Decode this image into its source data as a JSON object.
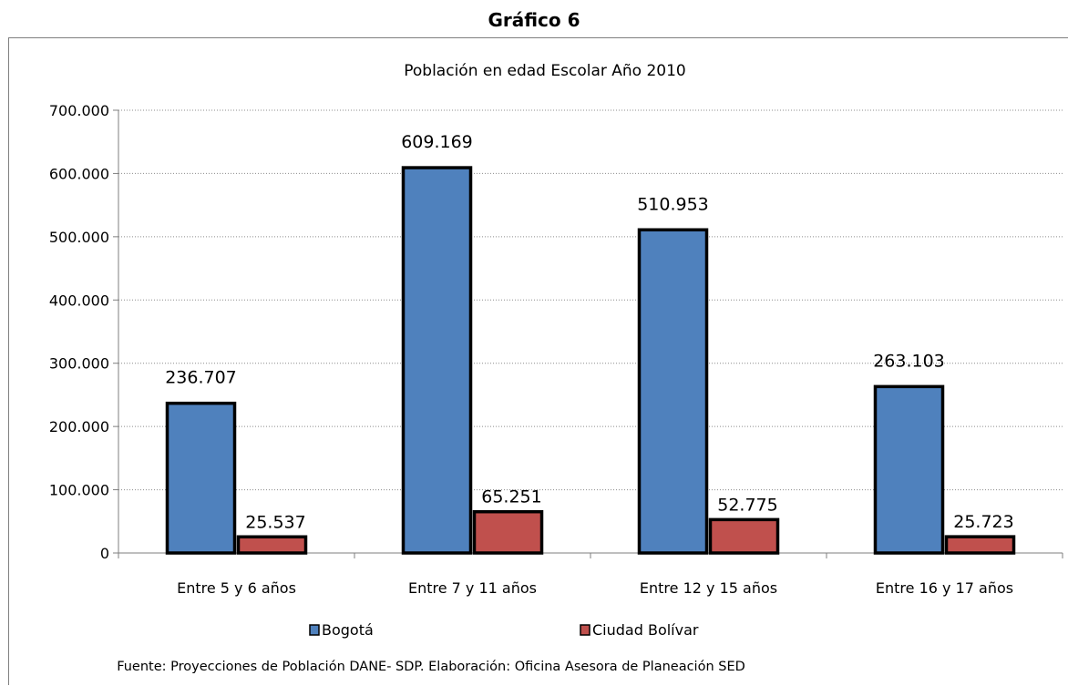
{
  "heading": "Gráfico 6",
  "source_note": "Fuente:  Proyecciones de Población DANE- SDP. Elaboración: Oficina Asesora de Planeación SED",
  "colors": {
    "Bogotá": "#4f81bd",
    "Ciudad Bolívar": "#c0504d"
  },
  "chart_data": {
    "type": "bar",
    "title": "Población en edad Escolar Año 2010",
    "categories": [
      "Entre 5 y 6 años",
      "Entre 7 y 11 años",
      "Entre 12 y 15 años",
      "Entre 16 y 17 años"
    ],
    "series": [
      {
        "name": "Bogotá",
        "values": [
          236707,
          609169,
          510953,
          263103
        ],
        "labels": [
          "236.707",
          "609.169",
          "510.953",
          "263.103"
        ]
      },
      {
        "name": "Ciudad Bolívar",
        "values": [
          25537,
          65251,
          52775,
          25723
        ],
        "labels": [
          "25.537",
          "65.251",
          "52.775",
          "25.723"
        ]
      }
    ],
    "ylim": [
      0,
      700000
    ],
    "yticks": [
      0,
      100000,
      200000,
      300000,
      400000,
      500000,
      600000,
      700000
    ],
    "ytick_labels": [
      "0",
      "100.000",
      "200.000",
      "300.000",
      "400.000",
      "500.000",
      "600.000",
      "700.000"
    ],
    "grid": true,
    "legend_position": "bottom"
  }
}
